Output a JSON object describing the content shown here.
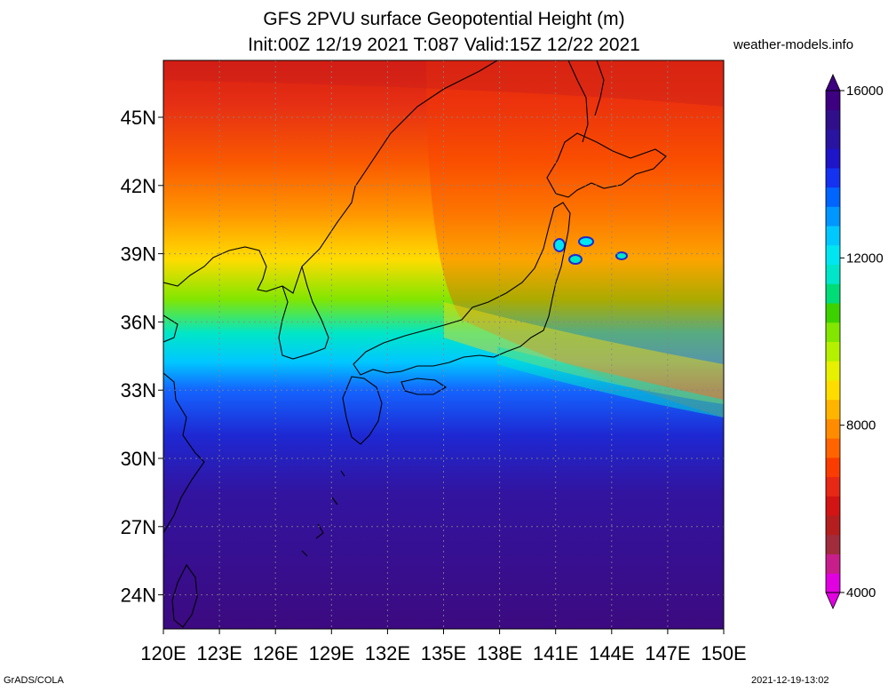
{
  "title": {
    "line1": "GFS 2PVU surface Geopotential Height (m)",
    "line2": "Init:00Z 12/19 2021 T:087 Valid:15Z 12/22 2021"
  },
  "site": "weather-models.info",
  "credit": "GrADS/COLA",
  "timestamp": "2021-12-19-13:02",
  "map": {
    "lon_range": [
      120,
      150
    ],
    "lat_range": [
      22.5,
      47.5
    ],
    "lon_ticks": [
      {
        "value": 120,
        "label": "120E"
      },
      {
        "value": 123,
        "label": "123E"
      },
      {
        "value": 126,
        "label": "126E"
      },
      {
        "value": 129,
        "label": "129E"
      },
      {
        "value": 132,
        "label": "132E"
      },
      {
        "value": 135,
        "label": "135E"
      },
      {
        "value": 138,
        "label": "138E"
      },
      {
        "value": 141,
        "label": "141E"
      },
      {
        "value": 144,
        "label": "144E"
      },
      {
        "value": 147,
        "label": "147E"
      },
      {
        "value": 150,
        "label": "150E"
      }
    ],
    "lat_ticks": [
      {
        "value": 45,
        "label": "45N"
      },
      {
        "value": 42,
        "label": "42N"
      },
      {
        "value": 39,
        "label": "39N"
      },
      {
        "value": 36,
        "label": "36N"
      },
      {
        "value": 33,
        "label": "33N"
      },
      {
        "value": 30,
        "label": "30N"
      },
      {
        "value": 27,
        "label": "27N"
      },
      {
        "value": 24,
        "label": "24N"
      }
    ],
    "gridlines": "dotted",
    "field": "2PVU surface geopotential height, high values (purple) in the south, low values (red) in the north",
    "coastline_color": "#000000"
  },
  "colorbar": {
    "min": 4000,
    "max": 16000,
    "labels": [
      {
        "value": 4000,
        "label": "4000"
      },
      {
        "value": 8000,
        "label": "8000"
      },
      {
        "value": 12000,
        "label": "12000"
      },
      {
        "value": 16000,
        "label": "16000"
      }
    ],
    "colors": [
      "#e000e0",
      "#c81e8c",
      "#a02c3c",
      "#b41e1e",
      "#d21414",
      "#e62814",
      "#fa3c00",
      "#ff6400",
      "#ff8c00",
      "#ffb400",
      "#ffdc00",
      "#e6f000",
      "#b4f000",
      "#82e600",
      "#3cd200",
      "#00dc78",
      "#00e6c8",
      "#00e6f0",
      "#00c8ff",
      "#0096ff",
      "#0064ff",
      "#1432f0",
      "#1e14c8",
      "#2814a0",
      "#30108a",
      "#3c0080"
    ]
  }
}
